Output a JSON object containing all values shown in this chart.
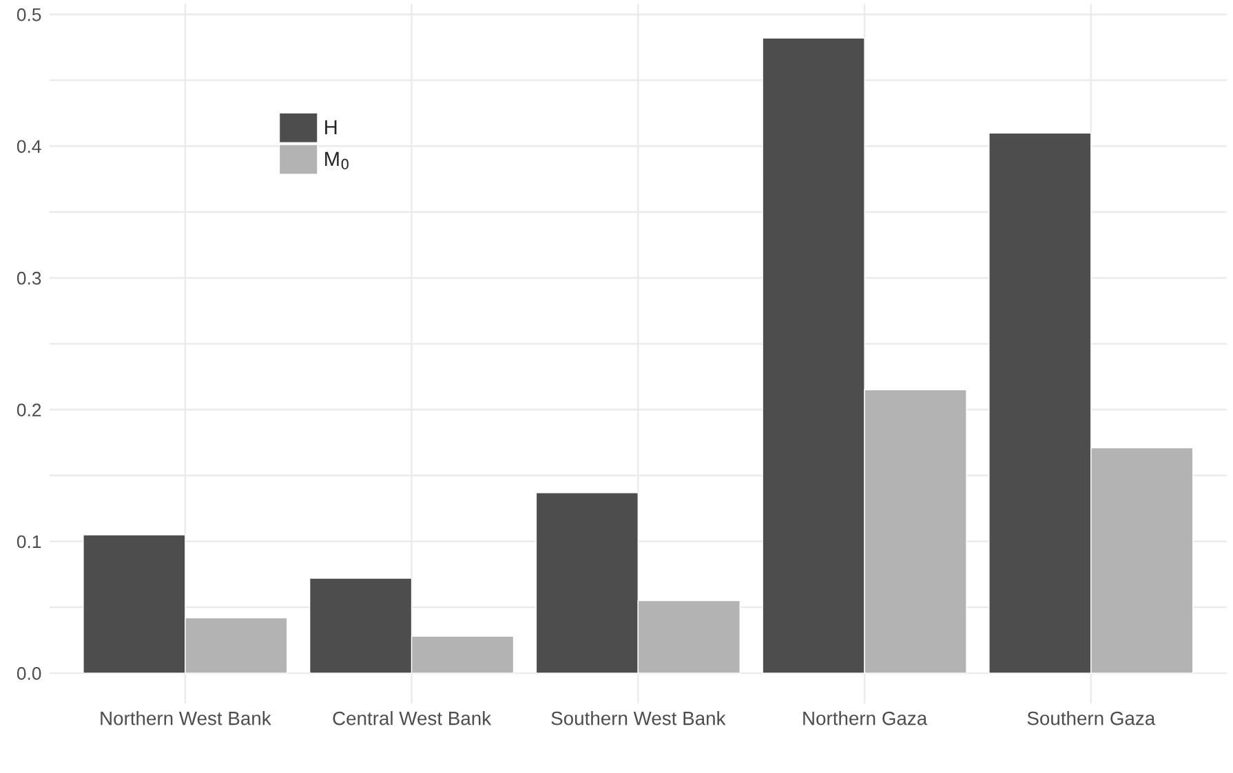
{
  "chart_data": {
    "type": "bar",
    "categories": [
      "Northern West Bank",
      "Central West Bank",
      "Southern West Bank",
      "Northern Gaza",
      "Southern Gaza"
    ],
    "series": [
      {
        "name": "H",
        "color": "#4d4d4d",
        "values": [
          0.105,
          0.072,
          0.137,
          0.482,
          0.41
        ]
      },
      {
        "name": "M$_{0}$",
        "color": "#b3b3b3",
        "values": [
          0.042,
          0.028,
          0.055,
          0.215,
          0.171
        ]
      }
    ],
    "ylim": [
      -0.023,
      0.508
    ],
    "yticks": [
      {
        "value": 0,
        "label": "0.0"
      },
      {
        "value": 0.05,
        "label": null
      },
      0.1,
      {
        "value": 0.15,
        "label": null
      },
      0.2,
      {
        "value": 0.25,
        "label": null
      },
      0.3,
      {
        "value": 0.35,
        "label": null
      },
      0.4,
      {
        "value": 0.45,
        "label": null
      },
      0.5
    ],
    "grid": true,
    "legend": "top left"
  }
}
